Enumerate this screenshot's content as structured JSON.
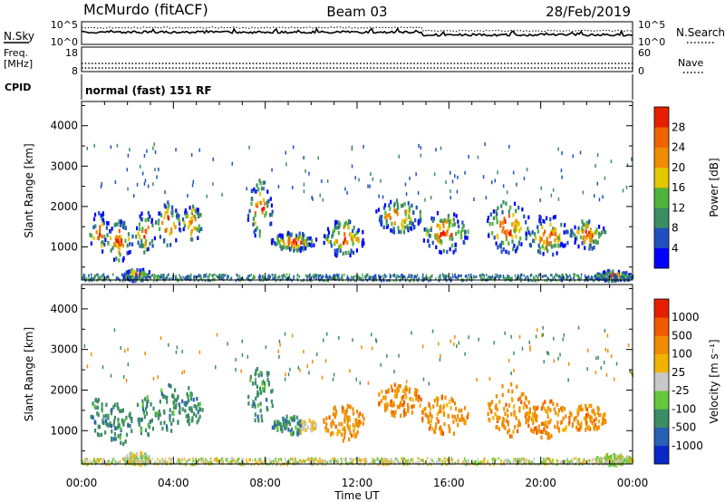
{
  "header": {
    "station": "McMurdo (fitACF)",
    "beam": "Beam 03",
    "date": "28/Feb/2019"
  },
  "status_panel": {
    "nsky_label": "N.Sky",
    "nsearch_label": "N.Search",
    "freq_label_line1": "Freq.",
    "freq_label_line2": "[MHz]",
    "nave_label": "Nave",
    "cpid_label": "CPID",
    "cpid_text": "normal (fast) 151 RF",
    "noise_left_ticks": [
      "10^5",
      "10^0"
    ],
    "noise_right_ticks": [
      "10^5",
      "10^0"
    ],
    "freq_left_ticks": [
      "18",
      "8"
    ],
    "nave_right_ticks": [
      "60",
      "0"
    ]
  },
  "chart_data": [
    {
      "type": "heatmap",
      "name": "power",
      "ylabel": "Slant Range [km]",
      "xlabel": "Time UT",
      "x_ticks": [
        "00:00",
        "04:00",
        "08:00",
        "12:00",
        "16:00",
        "20:00",
        "00:00"
      ],
      "xlim_hours": [
        0,
        24
      ],
      "y_ticks": [
        1000,
        2000,
        3000,
        4000
      ],
      "ylim": [
        180,
        4600
      ],
      "colorbar": {
        "label": "Power [dB]",
        "ticks": [
          "4",
          "8",
          "12",
          "16",
          "20",
          "24",
          "28"
        ],
        "colors": [
          "#0000ff",
          "#2050c0",
          "#3c8c64",
          "#50b43c",
          "#e6c800",
          "#f08c00",
          "#f06400",
          "#e61e00"
        ]
      }
    },
    {
      "type": "heatmap",
      "name": "velocity",
      "ylabel": "Slant Range [km]",
      "xlabel": "Time UT",
      "x_ticks": [
        "00:00",
        "04:00",
        "08:00",
        "12:00",
        "16:00",
        "20:00",
        "00:00"
      ],
      "xlim_hours": [
        0,
        24
      ],
      "y_ticks": [
        1000,
        2000,
        3000,
        4000
      ],
      "ylim": [
        180,
        4600
      ],
      "colorbar": {
        "label": "Velocity [m s⁻¹]",
        "ticks": [
          "1000",
          "500",
          "100",
          "25",
          "-25",
          "-100",
          "-500",
          "-1000"
        ],
        "colors": [
          "#0a28c8",
          "#2860b4",
          "#3c8c64",
          "#64c83c",
          "#c8c8c8",
          "#f0b400",
          "#f08c00",
          "#f05a00",
          "#e61e00"
        ]
      }
    }
  ],
  "echo_regions": [
    {
      "t0": 0.3,
      "t1": 1.2,
      "r0": 900,
      "r1": 1900
    },
    {
      "t0": 1.0,
      "t1": 2.2,
      "r0": 700,
      "r1": 1700
    },
    {
      "t0": 1.8,
      "t1": 3.0,
      "r0": 200,
      "r1": 500
    },
    {
      "t0": 2.3,
      "t1": 3.2,
      "r0": 900,
      "r1": 1900
    },
    {
      "t0": 3.2,
      "t1": 4.3,
      "r0": 1000,
      "r1": 2200
    },
    {
      "t0": 4.3,
      "t1": 5.3,
      "r0": 1200,
      "r1": 2100
    },
    {
      "t0": 7.2,
      "t1": 8.3,
      "r0": 1200,
      "r1": 2700
    },
    {
      "t0": 8.2,
      "t1": 10.2,
      "r0": 950,
      "r1": 1400
    },
    {
      "t0": 10.5,
      "t1": 12.3,
      "r0": 800,
      "r1": 1700
    },
    {
      "t0": 12.8,
      "t1": 14.8,
      "r0": 1400,
      "r1": 2200
    },
    {
      "t0": 14.8,
      "t1": 16.8,
      "r0": 900,
      "r1": 1900
    },
    {
      "t0": 17.6,
      "t1": 19.5,
      "r0": 900,
      "r1": 2200
    },
    {
      "t0": 19.3,
      "t1": 21.2,
      "r0": 850,
      "r1": 1800
    },
    {
      "t0": 21.2,
      "t1": 22.8,
      "r0": 1000,
      "r1": 1700
    },
    {
      "t0": 22.3,
      "t1": 23.9,
      "r0": 200,
      "r1": 450
    }
  ]
}
